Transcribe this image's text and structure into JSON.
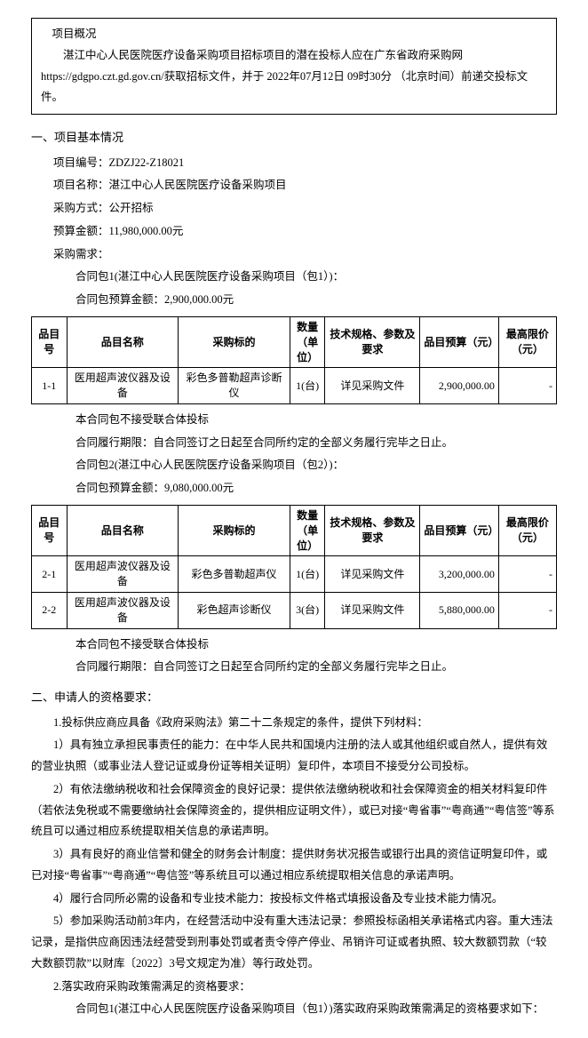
{
  "overview": {
    "t": "项目概况",
    "body": "湛江中心人民医院医疗设备采购项目招标项目的潜在投标人应在广东省政府采购网https://gdgpo.czt.gd.gov.cn/获取招标文件，并于 2022年07月12日 09时30分 （北京时间）前递交投标文件。"
  },
  "s1": {
    "h": "一、项目基本情况",
    "code_l": "项目编号：ZDZJ22-Z18021",
    "name_l": "项目名称：湛江中心人民医院医疗设备采购项目",
    "method_l": "采购方式：公开招标",
    "budget_l": "预算金额：11,980,000.00元",
    "need_l": "采购需求：",
    "pkg1_l": "合同包1(湛江中心人民医院医疗设备采购项目（包1）)：",
    "pkg1_amt": "合同包预算金额：2,900,000.00元",
    "pkg1_no": "本合同包不接受联合体投标",
    "pkg1_term": "合同履行期限：自合同签订之日起至合同所约定的全部义务履行完毕之日止。",
    "pkg2_l": "合同包2(湛江中心人民医院医疗设备采购项目（包2）)：",
    "pkg2_amt": "合同包预算金额：9,080,000.00元",
    "pkg2_no": "本合同包不接受联合体投标",
    "pkg2_term": "合同履行期限：自合同签订之日起至合同所约定的全部义务履行完毕之日止。"
  },
  "th": {
    "idx": "品目号",
    "name": "品目名称",
    "target": "采购标的",
    "qty": "数量（单位）",
    "spec": "技术规格、参数及要求",
    "budget": "品目预算（元）",
    "max": "最高限价（元）"
  },
  "t1": {
    "r1": {
      "idx": "1-1",
      "name": "医用超声波仪器及设备",
      "target": "彩色多普勒超声诊断仪",
      "qty": "1(台)",
      "spec": "详见采购文件",
      "budget": "2,900,000.00",
      "max": "-"
    }
  },
  "t2": {
    "r1": {
      "idx": "2-1",
      "name": "医用超声波仪器及设备",
      "target": "彩色多普勒超声仪",
      "qty": "1(台)",
      "spec": "详见采购文件",
      "budget": "3,200,000.00",
      "max": "-"
    },
    "r2": {
      "idx": "2-2",
      "name": "医用超声波仪器及设备",
      "target": "彩色超声诊断仪",
      "qty": "3(台)",
      "spec": "详见采购文件",
      "budget": "5,880,000.00",
      "max": "-"
    }
  },
  "s2": {
    "h": "二、申请人的资格要求：",
    "p1": "1.投标供应商应具备《政府采购法》第二十二条规定的条件，提供下列材料：",
    "p11": "1）具有独立承担民事责任的能力：在中华人民共和国境内注册的法人或其他组织或自然人，提供有效的营业执照（或事业法人登记证或身份证等相关证明）复印件，本项目不接受分公司投标。",
    "p12": "2）有依法缴纳税收和社会保障资金的良好记录：提供依法缴纳税收和社会保障资金的相关材料复印件（若依法免税或不需要缴纳社会保障资金的，提供相应证明文件），或已对接“粤省事”“粤商通”“粤信签”等系统且可以通过相应系统提取相关信息的承诺声明。",
    "p13": "3）具有良好的商业信誉和健全的财务会计制度：提供财务状况报告或银行出具的资信证明复印件，或已对接“粤省事”“粤商通”“粤信签”等系统且可以通过相应系统提取相关信息的承诺声明。",
    "p14": "4）履行合同所必需的设备和专业技术能力：按投标文件格式填报设备及专业技术能力情况。",
    "p15": "5）参加采购活动前3年内，在经营活动中没有重大违法记录：参照投标函相关承诺格式内容。重大违法记录，是指供应商因违法经营受到刑事处罚或者责令停产停业、吊销许可证或者执照、较大数额罚款（“较大数额罚款”以财库〔2022〕3号文规定为准）等行政处罚。",
    "p2": "2.落实政府采购政策需满足的资格要求：",
    "p21": "合同包1(湛江中心人民医院医疗设备采购项目（包1）)落实政府采购政策需满足的资格要求如下："
  }
}
